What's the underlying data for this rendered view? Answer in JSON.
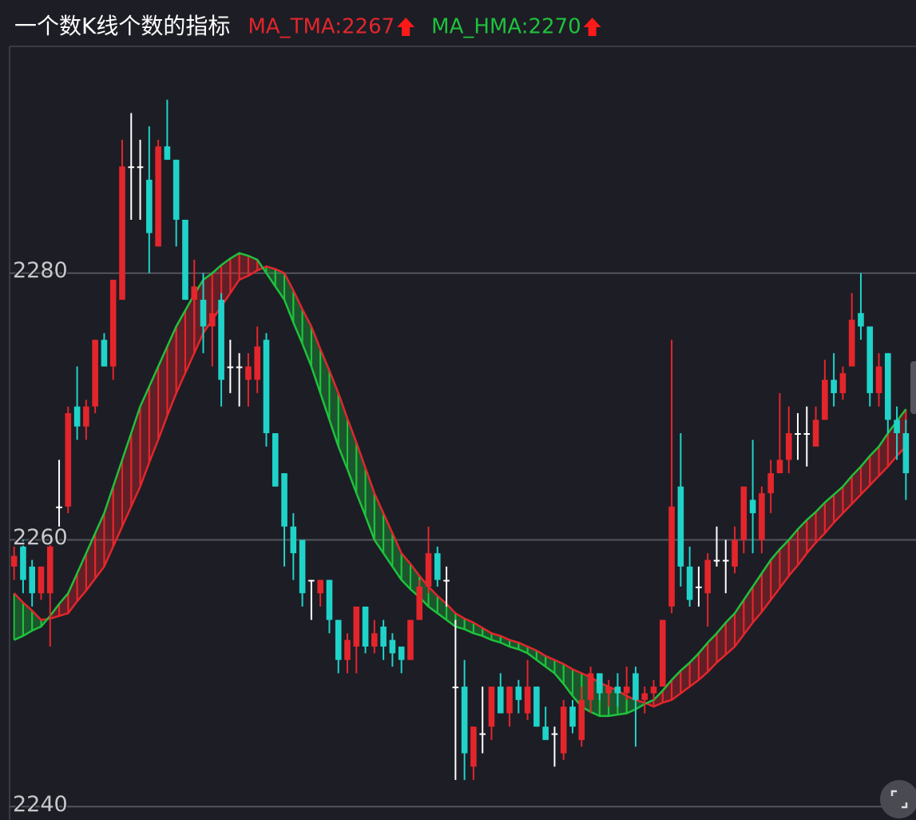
{
  "chart_data": {
    "type": "candlestick",
    "title": "一个数K线个数的指标",
    "ylim": [
      2239,
      2297
    ],
    "yticks": [
      2240,
      2260,
      2280
    ],
    "grid": true,
    "up_color": "#e3262c",
    "down_color": "#1fd3c9",
    "flat_color": "#ffffff",
    "candles": {
      "open": [
        2258,
        2259.5,
        2258,
        2256,
        2256,
        2262.5,
        2262.5,
        2270,
        2268.5,
        2270,
        2275,
        2273,
        2278,
        2288,
        2288,
        2287,
        2282,
        2289.5,
        2288.5,
        2284,
        2278,
        2278,
        2276,
        2278,
        2273,
        2273,
        2272,
        2272,
        2275,
        2268,
        2265,
        2261,
        2260,
        2257,
        2256,
        2257,
        2254,
        2251,
        2252,
        2255,
        2252,
        2253.5,
        2252.5,
        2252,
        2251,
        2254,
        2256.5,
        2259,
        2257,
        2249,
        2249,
        2243,
        2245.5,
        2246,
        2249,
        2247,
        2249,
        2247,
        2249,
        2246,
        2245.5,
        2244,
        2247.5,
        2245,
        2248,
        2250,
        2248.5,
        2249,
        2248.5,
        2250,
        2248,
        2248.5,
        2249,
        2255,
        2264,
        2258,
        2256.5,
        2256,
        2258.5,
        2258.5,
        2258,
        2260,
        2263,
        2260,
        2263.5,
        2265,
        2266,
        2268,
        2268,
        2267,
        2269,
        2272,
        2271,
        2273,
        2277,
        2276,
        2271,
        2274,
        2269,
        2268
      ],
      "high": [
        2259.5,
        2260,
        2258.5,
        2258,
        2260,
        2266,
        2270,
        2273,
        2270.5,
        2275,
        2275.5,
        2279.5,
        2290,
        2292,
        2290,
        2291,
        2290,
        2293,
        2288.5,
        2284,
        2281,
        2280,
        2279,
        2278.5,
        2275,
        2274,
        2274,
        2276,
        2275.5,
        2268,
        2265,
        2262,
        2260,
        2257,
        2257,
        2257,
        2254,
        2253,
        2255,
        2255,
        2254,
        2254,
        2253,
        2252,
        2254,
        2257,
        2261,
        2259.5,
        2258,
        2254,
        2251,
        2246,
        2249,
        2249,
        2250,
        2249,
        2249.5,
        2251,
        2249,
        2247.5,
        2246,
        2248,
        2248,
        2249,
        2250.5,
        2250,
        2249.5,
        2250,
        2250.5,
        2250.5,
        2249,
        2249.5,
        2254,
        2275,
        2268,
        2259.5,
        2258,
        2259,
        2261,
        2260,
        2261,
        2264,
        2267.5,
        2264,
        2266,
        2271,
        2270,
        2269.5,
        2270,
        2270,
        2273.5,
        2274,
        2273,
        2278.5,
        2280,
        2276,
        2274,
        2274,
        2270,
        2269
      ],
      "low": [
        2257,
        2256,
        2255,
        2255.5,
        2252,
        2261,
        2262,
        2267.5,
        2267.5,
        2269.5,
        2273,
        2272,
        2278,
        2284,
        2284,
        2280,
        2282,
        2288.5,
        2282,
        2278,
        2275,
        2274,
        2273,
        2270,
        2271,
        2270,
        2270,
        2271,
        2267,
        2264,
        2258,
        2257,
        2255,
        2254,
        2255,
        2253,
        2250,
        2250,
        2250,
        2251.5,
        2251.5,
        2251,
        2250.5,
        2250,
        2251,
        2254,
        2256,
        2256.5,
        2255,
        2242,
        2242,
        2242,
        2244,
        2245,
        2247,
        2246,
        2247,
        2246.5,
        2246,
        2245,
        2243,
        2243.5,
        2245.5,
        2244.5,
        2247,
        2248,
        2247.5,
        2247.5,
        2248,
        2244.5,
        2247,
        2248,
        2249,
        2254.5,
        2256.5,
        2255,
        2255,
        2253.5,
        2258,
        2256,
        2257.5,
        2259,
        2259,
        2259,
        2262,
        2265,
        2265,
        2266,
        2265.5,
        2267,
        2269,
        2270,
        2270.5,
        2273,
        2275,
        2270,
        2270,
        2268,
        2266,
        2263
      ],
      "close": [
        2258.8,
        2257,
        2256,
        2258,
        2259.5,
        2262.5,
        2269.5,
        2268.5,
        2270,
        2275,
        2273,
        2279.5,
        2288,
        2288,
        2288,
        2283,
        2289.5,
        2288.5,
        2284,
        2278,
        2279,
        2276,
        2277,
        2272,
        2273,
        2273,
        2273,
        2274.5,
        2268,
        2264,
        2261,
        2259,
        2256,
        2257,
        2257,
        2254,
        2251,
        2252.5,
        2255,
        2252,
        2253,
        2252,
        2251.5,
        2251,
        2254,
        2256.5,
        2259,
        2257,
        2257,
        2249,
        2244,
        2246,
        2245.5,
        2249,
        2247,
        2249,
        2248,
        2249,
        2246,
        2245,
        2245.5,
        2247.5,
        2246,
        2248,
        2250,
        2248.5,
        2249,
        2248.5,
        2249,
        2248,
        2248.5,
        2249,
        2254,
        2262.5,
        2258,
        2255.5,
        2256.5,
        2258.5,
        2258.5,
        2258.5,
        2260,
        2264,
        2262,
        2263.5,
        2265,
        2266,
        2268,
        2268,
        2268,
        2269,
        2272,
        2271,
        2272.5,
        2276.5,
        2276,
        2271,
        2273,
        2269,
        2268,
        2265
      ]
    },
    "series": [
      {
        "name": "MA_TMA:2267",
        "color": "#e3262c",
        "values": [
          2256,
          2255.3,
          2254.7,
          2254,
          2254.1,
          2254.3,
          2254.5,
          2255.4,
          2256.2,
          2257.1,
          2258,
          2259.5,
          2261,
          2262.5,
          2264,
          2265.8,
          2267.5,
          2269.3,
          2271,
          2272.5,
          2274,
          2275.5,
          2276.5,
          2277.5,
          2278.5,
          2279.5,
          2279.8,
          2280.2,
          2280.5,
          2280.3,
          2280,
          2278.7,
          2277.3,
          2276,
          2274.3,
          2272.7,
          2271,
          2269.1,
          2267.3,
          2265.4,
          2263.5,
          2262,
          2260.5,
          2259,
          2258.2,
          2257.3,
          2256.5,
          2255.8,
          2255.2,
          2254.5,
          2254.1,
          2253.8,
          2253.4,
          2253,
          2252.8,
          2252.5,
          2252.3,
          2252,
          2251.7,
          2251.3,
          2251,
          2250.7,
          2250.3,
          2250,
          2249.7,
          2249.3,
          2249,
          2248.7,
          2248.3,
          2248,
          2247.8,
          2247.5,
          2247.8,
          2248,
          2248.5,
          2249,
          2249.5,
          2250.1,
          2250.8,
          2251.4,
          2252,
          2252.9,
          2253.8,
          2254.6,
          2255.5,
          2256.4,
          2257.3,
          2258.1,
          2259,
          2259.8,
          2260.5,
          2261.3,
          2262,
          2262.7,
          2263.4,
          2264.1,
          2264.8,
          2265.5,
          2266.3,
          2267
        ]
      },
      {
        "name": "MA_HMA:2270",
        "color": "#1ec23c",
        "values": [
          2252.5,
          2252.8,
          2253.2,
          2253.5,
          2254.3,
          2255.2,
          2256,
          2257.5,
          2259,
          2260.5,
          2262,
          2264,
          2266,
          2268,
          2270,
          2271.5,
          2273,
          2274.5,
          2276,
          2277.2,
          2278.4,
          2279.5,
          2280,
          2280.6,
          2281.1,
          2281.5,
          2281.3,
          2281,
          2280,
          2279,
          2278,
          2276.3,
          2274.7,
          2273,
          2271,
          2269,
          2267,
          2265.3,
          2263.5,
          2261.8,
          2260,
          2259,
          2258,
          2257,
          2256.3,
          2255.7,
          2255,
          2254.5,
          2254,
          2253.5,
          2253.3,
          2253,
          2252.8,
          2252.5,
          2252.3,
          2252,
          2251.8,
          2251.5,
          2251,
          2250.5,
          2250,
          2249.2,
          2248.3,
          2247.5,
          2247.1,
          2246.8,
          2246.8,
          2246.9,
          2247,
          2247.3,
          2247.7,
          2248,
          2248.7,
          2249.5,
          2250.2,
          2250.8,
          2251.5,
          2252.3,
          2253,
          2253.8,
          2254.5,
          2255.5,
          2256.5,
          2257.5,
          2258.5,
          2259.3,
          2260,
          2260.8,
          2261.5,
          2262.1,
          2262.8,
          2263.4,
          2264,
          2264.8,
          2265.5,
          2266.3,
          2267,
          2268,
          2268.9,
          2269.8
        ]
      }
    ]
  }
}
